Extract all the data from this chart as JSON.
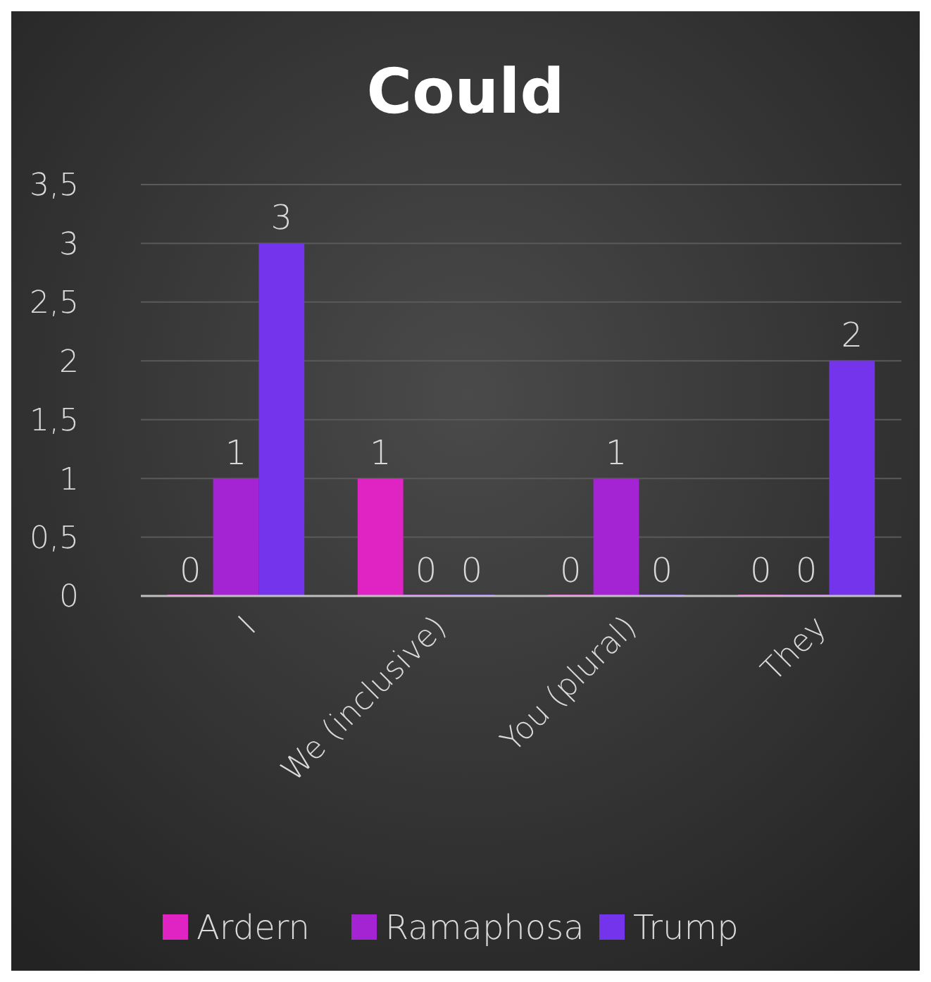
{
  "chart_data": {
    "type": "bar",
    "title": "Could",
    "categories": [
      "I",
      "We (inclusive)",
      "You (plural)",
      "They"
    ],
    "series": [
      {
        "name": "Ardern",
        "color": "#e024c4",
        "values": [
          0,
          1,
          0,
          0
        ]
      },
      {
        "name": "Ramaphosa",
        "color": "#a424d4",
        "values": [
          1,
          0,
          1,
          0
        ]
      },
      {
        "name": "Trump",
        "color": "#7434ec",
        "values": [
          3,
          0,
          0,
          2
        ]
      }
    ],
    "ylim": [
      0,
      3.5
    ],
    "yticks": [
      0,
      {
        "value": 0.5,
        "label": "0,5"
      },
      1,
      {
        "value": 1.5,
        "label": "1,5"
      },
      2,
      {
        "value": 2.5,
        "label": "2,5"
      },
      3,
      {
        "value": 3.5,
        "label": "3,5"
      }
    ],
    "grid": "y",
    "data_labels": true,
    "legend": "bottom"
  }
}
